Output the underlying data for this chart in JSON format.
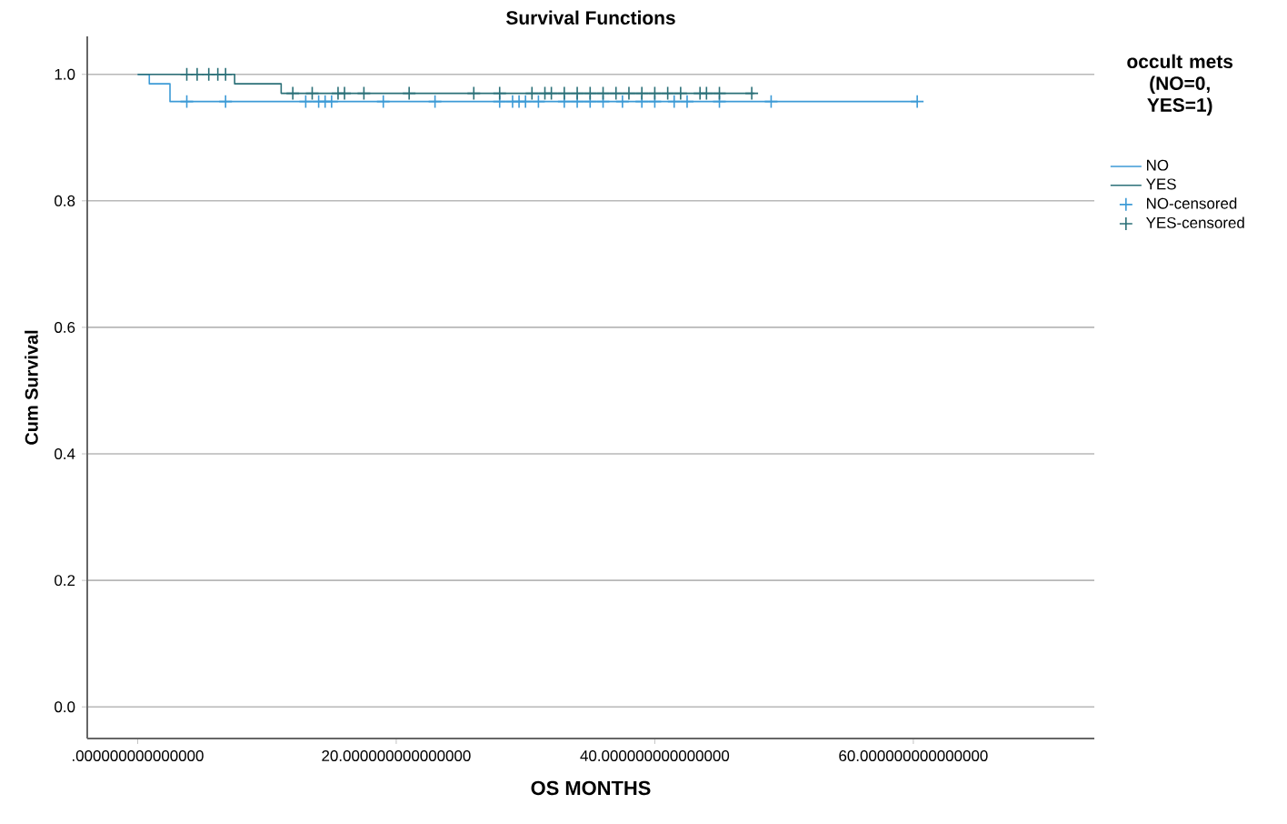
{
  "chart_data": {
    "type": "step",
    "title": "Survival Functions",
    "xlabel": "OS MONTHS",
    "ylabel": "Cum Survival",
    "legend_title": "occult mets (NO=0, YES=1)",
    "xlim": [
      -3.9,
      74
    ],
    "ylim": [
      -0.05,
      1.06
    ],
    "xticks": [
      {
        "value": 0,
        "label": ".000000000000000"
      },
      {
        "value": 20,
        "label": "20.000000000000000"
      },
      {
        "value": 40,
        "label": "40.000000000000000"
      },
      {
        "value": 60,
        "label": "60.000000000000000"
      }
    ],
    "yticks": [
      {
        "value": 0,
        "label": "0.0"
      },
      {
        "value": 0.2,
        "label": "0.2"
      },
      {
        "value": 0.4,
        "label": "0.4"
      },
      {
        "value": 0.6,
        "label": "0.6"
      },
      {
        "value": 0.8,
        "label": "0.8"
      },
      {
        "value": 1.0,
        "label": "1.0"
      }
    ],
    "grid": "y",
    "legend": "right",
    "series": [
      {
        "name": "NO",
        "color": "#3c9ad6",
        "x": [
          0,
          0.9,
          2.5,
          60.3
        ],
        "values": [
          1.0,
          0.985,
          0.957,
          0.957
        ]
      },
      {
        "name": "YES",
        "color": "#2b7078",
        "x": [
          0,
          7.5,
          11.1,
          47.7
        ],
        "values": [
          1.0,
          0.985,
          0.97,
          0.97
        ]
      },
      {
        "name": "NO-censored",
        "type": "scatter",
        "marker": "cross",
        "color": "#3c9ad6",
        "x": [
          3.8,
          6.8,
          13,
          14,
          14.5,
          15,
          19,
          23,
          28,
          29,
          29.5,
          30,
          31,
          33,
          34,
          35,
          36,
          37.5,
          39,
          40,
          41.5,
          42.5,
          45,
          49,
          60.3
        ],
        "values": [
          0.957,
          0.957,
          0.957,
          0.957,
          0.957,
          0.957,
          0.957,
          0.957,
          0.957,
          0.957,
          0.957,
          0.957,
          0.957,
          0.957,
          0.957,
          0.957,
          0.957,
          0.957,
          0.957,
          0.957,
          0.957,
          0.957,
          0.957,
          0.957,
          0.957
        ]
      },
      {
        "name": "YES-censored",
        "type": "scatter",
        "marker": "cross",
        "color": "#2b7078",
        "x": [
          3.8,
          4.6,
          5.5,
          6.2,
          6.8,
          12,
          13.5,
          15.5,
          16,
          17.5,
          21,
          26,
          28,
          30.5,
          31.5,
          32,
          33,
          34,
          35,
          36,
          37,
          38,
          39,
          40,
          41,
          42,
          43.5,
          44,
          45,
          47.5
        ],
        "values": [
          1.0,
          1.0,
          1.0,
          1.0,
          1.0,
          0.97,
          0.97,
          0.97,
          0.97,
          0.97,
          0.97,
          0.97,
          0.97,
          0.97,
          0.97,
          0.97,
          0.97,
          0.97,
          0.97,
          0.97,
          0.97,
          0.97,
          0.97,
          0.97,
          0.97,
          0.97,
          0.97,
          0.97,
          0.97,
          0.97
        ]
      }
    ]
  }
}
